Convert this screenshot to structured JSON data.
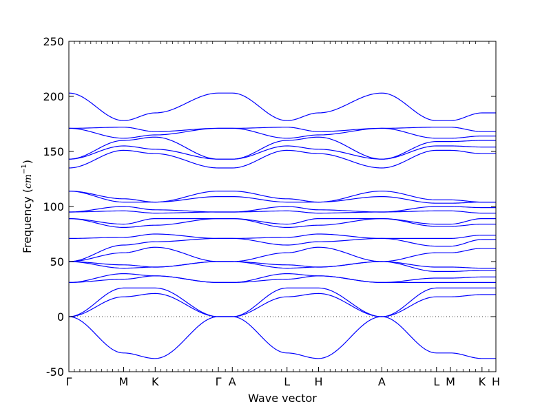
{
  "chart_data": {
    "type": "line",
    "title": "",
    "xlabel": "Wave vector",
    "ylabel_text": "Frequency (",
    "ylabel_unit": "cm",
    "ylabel_exp": "−1",
    "ylabel_close": ")",
    "ylim": [
      -50,
      250
    ],
    "yticks": [
      -50,
      0,
      50,
      100,
      150,
      200,
      250
    ],
    "grid": false,
    "line_color": "#0000ff",
    "zero_line": true,
    "x_points": [
      {
        "label": "Γ",
        "x": 0.0
      },
      {
        "label": "M",
        "x": 1.0
      },
      {
        "label": "K",
        "x": 1.577
      },
      {
        "label": "Γ",
        "x": 2.732
      },
      {
        "label": "A",
        "x": 2.986
      },
      {
        "label": "L",
        "x": 3.986
      },
      {
        "label": "H",
        "x": 4.563
      },
      {
        "label": "A",
        "x": 5.718
      },
      {
        "label": "L",
        "x": 6.718
      },
      {
        "label": "M",
        "x": 6.972
      },
      {
        "label": "K",
        "x": 7.549
      },
      {
        "label": "H",
        "x": 7.803
      }
    ],
    "series": [
      {
        "values": [
          0,
          -33,
          -38,
          0,
          0,
          -33,
          -38,
          0,
          -33,
          -33,
          -38,
          -38
        ]
      },
      {
        "values": [
          0,
          18,
          21,
          0,
          0,
          18,
          21,
          0,
          18,
          18,
          20,
          20
        ]
      },
      {
        "values": [
          0,
          26,
          26,
          0,
          0,
          26,
          26,
          0,
          26,
          26,
          26,
          26
        ]
      },
      {
        "values": [
          31,
          34,
          37,
          31,
          31,
          34,
          37,
          31,
          31,
          31,
          31,
          31
        ]
      },
      {
        "values": [
          31,
          39,
          37,
          31,
          31,
          39,
          37,
          31,
          35,
          35,
          36,
          36
        ]
      },
      {
        "values": [
          50,
          44,
          45,
          50,
          50,
          44,
          45,
          50,
          41,
          41,
          42,
          42
        ]
      },
      {
        "values": [
          50,
          47,
          45,
          50,
          50,
          47,
          45,
          50,
          45,
          45,
          44,
          44
        ]
      },
      {
        "values": [
          50,
          58,
          63,
          50,
          50,
          58,
          63,
          50,
          58,
          58,
          62,
          62
        ]
      },
      {
        "values": [
          50,
          65,
          68,
          71,
          71,
          65,
          68,
          71,
          64,
          64,
          70,
          70
        ]
      },
      {
        "values": [
          71,
          72,
          75,
          71,
          71,
          72,
          75,
          71,
          71,
          71,
          74,
          74
        ]
      },
      {
        "values": [
          89,
          81,
          83,
          89,
          89,
          81,
          83,
          89,
          82,
          82,
          84,
          84
        ]
      },
      {
        "values": [
          89,
          84,
          89,
          89,
          89,
          84,
          89,
          89,
          84,
          84,
          89,
          89
        ]
      },
      {
        "values": [
          95,
          96,
          94,
          95,
          95,
          96,
          94,
          95,
          96,
          96,
          94,
          94
        ]
      },
      {
        "values": [
          95,
          100,
          97,
          95,
          95,
          100,
          97,
          95,
          100,
          100,
          99,
          99
        ]
      },
      {
        "values": [
          114,
          104,
          104,
          109,
          109,
          104,
          104,
          109,
          103,
          103,
          104,
          104
        ]
      },
      {
        "values": [
          114,
          107,
          104,
          114,
          114,
          107,
          104,
          114,
          106,
          106,
          104,
          104
        ]
      },
      {
        "values": [
          135,
          151,
          148,
          135,
          135,
          151,
          148,
          135,
          151,
          151,
          148,
          148
        ]
      },
      {
        "values": [
          143,
          155,
          152,
          143,
          143,
          155,
          152,
          143,
          155,
          155,
          154,
          154
        ]
      },
      {
        "values": [
          143,
          160,
          163,
          143,
          143,
          160,
          163,
          143,
          159,
          159,
          160,
          160
        ]
      },
      {
        "values": [
          171,
          162,
          165,
          171,
          171,
          162,
          165,
          171,
          162,
          162,
          164,
          164
        ]
      },
      {
        "values": [
          171,
          172,
          168,
          171,
          171,
          172,
          168,
          171,
          172,
          172,
          168,
          168
        ]
      },
      {
        "values": [
          203,
          178,
          185,
          203,
          203,
          178,
          185,
          203,
          178,
          178,
          185,
          185
        ]
      }
    ]
  }
}
